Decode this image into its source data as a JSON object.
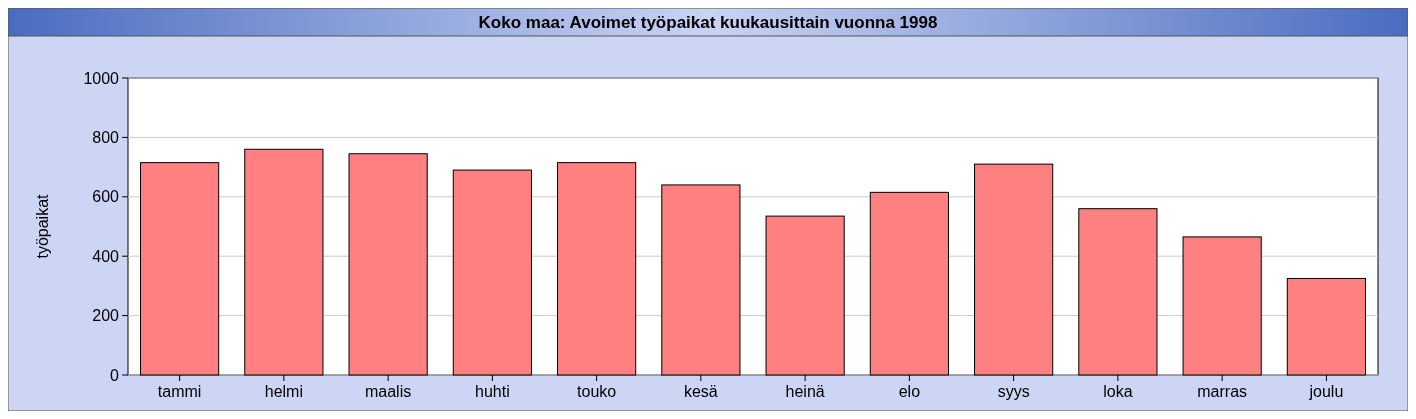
{
  "chart_data": {
    "type": "bar",
    "title": "Koko maa: Avoimet työpaikat kuukausittain vuonna 1998",
    "ylabel": "työpaikat",
    "categories": [
      "tammi",
      "helmi",
      "maalis",
      "huhti",
      "touko",
      "kesä",
      "heinä",
      "elo",
      "syys",
      "loka",
      "marras",
      "joulu"
    ],
    "values": [
      715,
      760,
      745,
      690,
      715,
      640,
      535,
      615,
      710,
      560,
      465,
      325
    ],
    "color": "#ff8080",
    "ylim": [
      0,
      1000
    ],
    "yticks": [
      0,
      200,
      400,
      600,
      800,
      1000
    ],
    "grid": "y"
  }
}
